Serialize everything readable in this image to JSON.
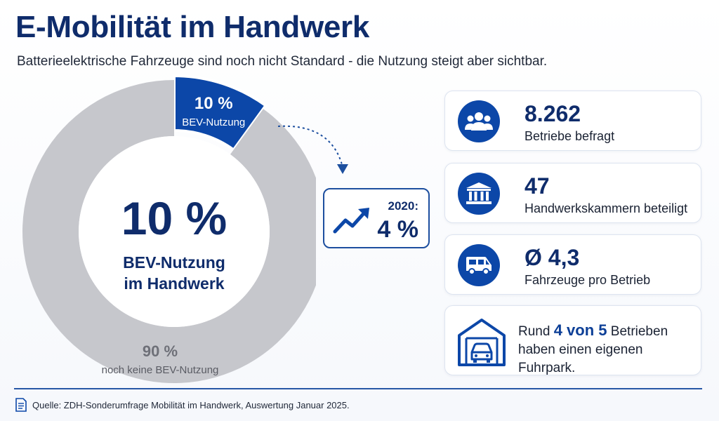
{
  "header": {
    "title": "E-Mobilität im Handwerk",
    "subtitle": "Batterieelektrische Fahrzeuge sind noch nicht Standard - die Nutzung steigt aber sichtbar."
  },
  "chart_data": {
    "type": "pie",
    "categories": [
      "BEV-Nutzung",
      "noch keine BEV-Nutzung"
    ],
    "values": [
      10,
      90
    ],
    "unit": "%",
    "colors": [
      "#0c47a8",
      "#c6c7cc"
    ],
    "slice_labels": [
      {
        "value": "10 %",
        "label": "BEV-Nutzung"
      },
      {
        "value": "90 %",
        "label": "noch keine BEV-Nutzung"
      }
    ],
    "center": {
      "value": "10 %",
      "line1": "BEV-Nutzung",
      "line2": "im Handwerk"
    }
  },
  "callout": {
    "year": "2020:",
    "value": "4 %",
    "icon": "trend-up-icon"
  },
  "stats": [
    {
      "value": "8.262",
      "label": "Betriebe befragt",
      "icon": "people-icon"
    },
    {
      "value": "47",
      "label": "Handwerkskammern beteiligt",
      "icon": "institution-icon"
    },
    {
      "value": "Ø 4,3",
      "label": "Fahrzeuge pro Betrieb",
      "icon": "van-icon"
    }
  ],
  "fleet": {
    "prefix": "Rund",
    "highlight": "4 von 5",
    "suffix": "Betrieben",
    "line2": "haben einen eigenen Fuhrpark.",
    "icon": "garage-icon"
  },
  "colors": {
    "accent": "#0c47a8",
    "title": "#0f2c6b",
    "gray": "#c6c7cc"
  },
  "footer": {
    "source": "Quelle: ZDH-Sonderumfrage Mobilität im Handwerk, Auswertung Januar 2025."
  }
}
